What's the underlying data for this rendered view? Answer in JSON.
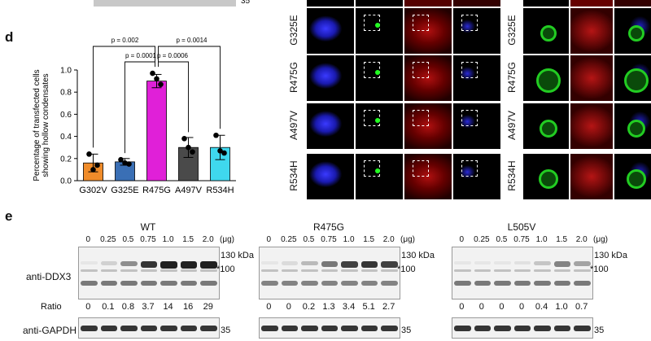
{
  "panel_d": {
    "letter": "d",
    "pvalues": [
      "p = 0.002",
      "p = 0.0014",
      "p = 0.0001",
      "p = 0.0006"
    ],
    "chart_data": {
      "type": "bar",
      "categories": [
        "G302V",
        "G325E",
        "R475G",
        "A497V",
        "R534H"
      ],
      "values": [
        0.16,
        0.17,
        0.9,
        0.3,
        0.3
      ],
      "errors": [
        0.08,
        0.03,
        0.06,
        0.09,
        0.11
      ],
      "points": [
        [
          0.24,
          0.14,
          0.1
        ],
        [
          0.19,
          0.15,
          0.16
        ],
        [
          0.97,
          0.87,
          0.92
        ],
        [
          0.38,
          0.26,
          0.3
        ],
        [
          0.41,
          0.25,
          0.27
        ]
      ],
      "colors": [
        "#f08c2a",
        "#3a6fb5",
        "#e020d8",
        "#4a4a4a",
        "#3fd8ee"
      ],
      "ylabel": "Percentage of transfected cells\nshowing hollow condensates",
      "ylim": [
        0,
        1.0
      ],
      "yticks": [
        "0.0",
        "0.2",
        "0.4",
        "0.6",
        "0.8",
        "1.0"
      ]
    }
  },
  "panel_mic": {
    "rows": [
      "G325E",
      "R475G",
      "A497V",
      "R534H"
    ]
  },
  "panel_e": {
    "letter": "e",
    "blots": [
      {
        "title": "WT",
        "lanes": [
          "0",
          "0.25",
          "0.5",
          "0.75",
          "1.0",
          "1.5",
          "2.0"
        ],
        "unit": "(μg)",
        "ratios": [
          "0",
          "0.1",
          "0.8",
          "3.7",
          "14",
          "16",
          "29"
        ]
      },
      {
        "title": "R475G",
        "lanes": [
          "0",
          "0.25",
          "0.5",
          "0.75",
          "1.0",
          "1.5",
          "2.0"
        ],
        "unit": "(μg)",
        "ratios": [
          "0",
          "0",
          "0.2",
          "1.3",
          "3.4",
          "5.1",
          "2.7"
        ]
      },
      {
        "title": "L505V",
        "lanes": [
          "0",
          "0.25",
          "0.5",
          "0.75",
          "1.0",
          "1.5",
          "2.0"
        ],
        "unit": "(μg)",
        "ratios": [
          "0",
          "0",
          "0",
          "0",
          "0.4",
          "1.0",
          "0.7"
        ]
      }
    ],
    "labels": {
      "ddx3": "anti-DDX3",
      "gapdh": "anti-GAPDH",
      "ratio": "Ratio"
    },
    "markers": {
      "m130": "130 kDa",
      "m100": "*100",
      "m35": "35"
    },
    "top_marker": "35"
  }
}
